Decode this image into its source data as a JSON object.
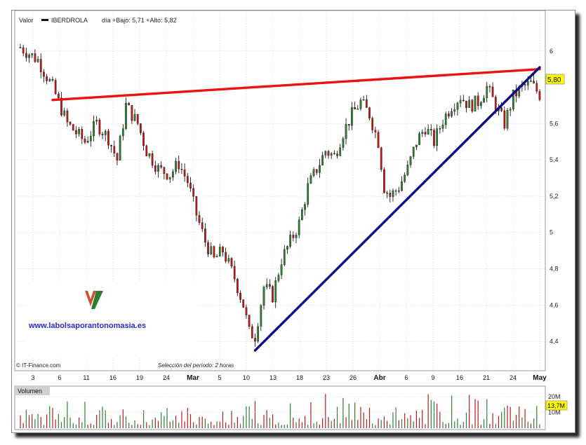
{
  "header": {
    "label": "Valor",
    "ticker": "IBERDROLA",
    "stats": "día +Bajo: 5,71 +Alto: 5,82"
  },
  "price_badge": "5,80",
  "volume_badge": "13,7M",
  "footer": {
    "source": "© IT-Finance.com",
    "selection": "Selección del período: 2 horas"
  },
  "volume_label": "Volumen",
  "watermark": {
    "url": "www.labolsaporantonomasia.es"
  },
  "colors": {
    "up": "#2e7d32",
    "down": "#b71c1c",
    "resistance": "#ee1111",
    "support": "#0a0a8a",
    "badge": "#ffff00",
    "grid": "#c8c8c8"
  },
  "chart_data": {
    "type": "candlestick",
    "period": "2 horas",
    "ylim": [
      4.3,
      6.2
    ],
    "y_ticks": [
      "4,4",
      "4,6",
      "4,8",
      "5",
      "5,2",
      "5,4",
      "5,6",
      "5,80",
      "6"
    ],
    "x_ticks": [
      "3",
      "6",
      "11",
      "16",
      "19",
      "24",
      "Mar",
      "5",
      "10",
      "13",
      "18",
      "23",
      "26",
      "Abr",
      "6",
      "9",
      "16",
      "21",
      "24",
      "May"
    ],
    "price_path": [
      [
        0,
        6.02
      ],
      [
        6,
        5.95
      ],
      [
        11,
        5.8
      ],
      [
        16,
        5.6
      ],
      [
        19,
        5.55
      ],
      [
        22,
        5.5
      ],
      [
        26,
        5.6
      ],
      [
        30,
        5.52
      ],
      [
        33,
        5.4
      ],
      [
        36,
        5.7
      ],
      [
        40,
        5.6
      ],
      [
        43,
        5.45
      ],
      [
        47,
        5.35
      ],
      [
        51,
        5.32
      ],
      [
        54,
        5.38
      ],
      [
        57,
        5.28
      ],
      [
        60,
        5.1
      ],
      [
        63,
        4.95
      ],
      [
        66,
        4.85
      ],
      [
        69,
        4.9
      ],
      [
        73,
        4.75
      ],
      [
        76,
        4.6
      ],
      [
        78,
        4.45
      ],
      [
        80,
        4.43
      ],
      [
        83,
        4.7
      ],
      [
        86,
        4.65
      ],
      [
        89,
        4.85
      ],
      [
        92,
        4.95
      ],
      [
        95,
        5.05
      ],
      [
        98,
        5.25
      ],
      [
        101,
        5.35
      ],
      [
        104,
        5.45
      ],
      [
        107,
        5.42
      ],
      [
        110,
        5.55
      ],
      [
        113,
        5.65
      ],
      [
        116,
        5.72
      ],
      [
        119,
        5.65
      ],
      [
        122,
        5.5
      ],
      [
        124,
        5.25
      ],
      [
        126,
        5.2
      ],
      [
        129,
        5.25
      ],
      [
        132,
        5.35
      ],
      [
        135,
        5.5
      ],
      [
        138,
        5.58
      ],
      [
        141,
        5.5
      ],
      [
        144,
        5.62
      ],
      [
        147,
        5.7
      ],
      [
        150,
        5.75
      ],
      [
        153,
        5.7
      ],
      [
        156,
        5.72
      ],
      [
        159,
        5.8
      ],
      [
        162,
        5.7
      ],
      [
        165,
        5.6
      ],
      [
        168,
        5.75
      ],
      [
        171,
        5.8
      ],
      [
        174,
        5.82
      ],
      [
        177,
        5.76
      ]
    ],
    "trendlines": [
      {
        "kind": "resistance",
        "from": [
          11,
          5.73
        ],
        "to": [
          177,
          5.9
        ]
      },
      {
        "kind": "support",
        "from": [
          80,
          4.35
        ],
        "to": [
          177,
          5.91
        ]
      }
    ],
    "volume": {
      "ylim": [
        0,
        25000000
      ],
      "ticks": [
        "20M",
        "10M"
      ],
      "last": 13700000
    }
  }
}
